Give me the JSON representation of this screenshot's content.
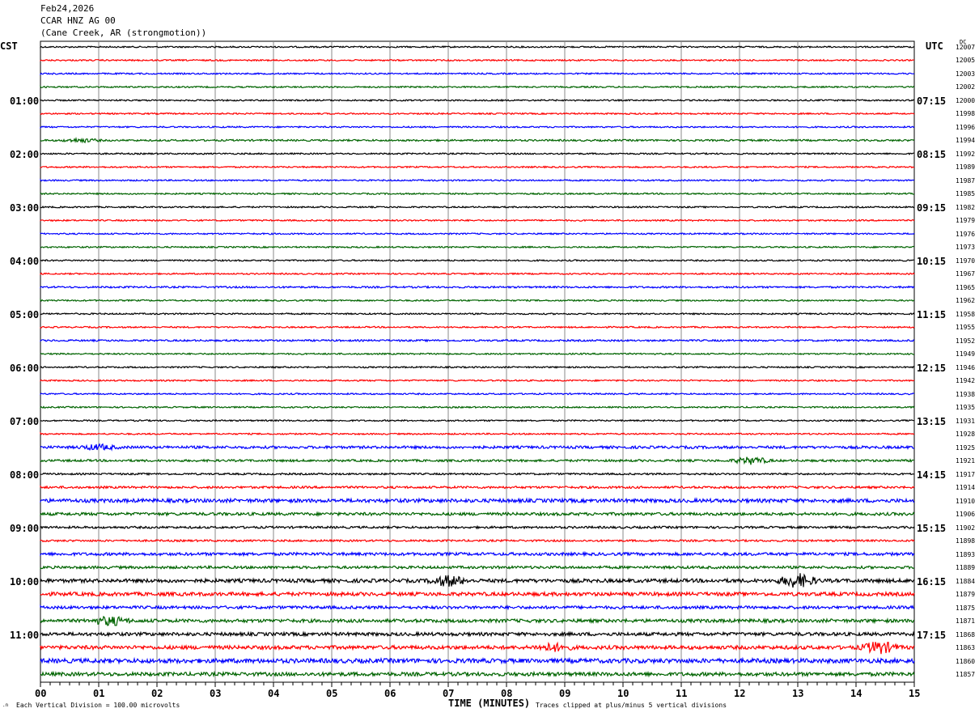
{
  "header": {
    "date": "Feb24,2026",
    "station": "CCAR HNZ AG 00",
    "location": "(Cane Creek, AR (strongmotion))"
  },
  "left_tz": "CST",
  "right_tz": "UTC",
  "dc_label": "DC",
  "footer": {
    "scale_note": "Each Vertical Division =  100.00 microvolts",
    "xlabel": "TIME (MINUTES)",
    "clip_note": "Traces clipped at plus/minus 5 vertical divisions"
  },
  "chart_data": {
    "type": "line",
    "title": "",
    "xlabel": "TIME (MINUTES)",
    "xlim": [
      0,
      15
    ],
    "x_ticks": [
      "00",
      "01",
      "02",
      "03",
      "04",
      "05",
      "06",
      "07",
      "08",
      "09",
      "10",
      "11",
      "12",
      "13",
      "14",
      "15"
    ],
    "grid": true,
    "trace_colors": [
      "#000000",
      "#ff0000",
      "#0000ff",
      "#006400"
    ],
    "left_hour_labels": [
      "",
      "01:00",
      "02:00",
      "03:00",
      "04:00",
      "05:00",
      "06:00",
      "07:00",
      "08:00",
      "09:00",
      "10:00",
      "11:00"
    ],
    "right_hour_labels": [
      "",
      "07:15",
      "08:15",
      "09:15",
      "10:15",
      "11:15",
      "12:15",
      "13:15",
      "14:15",
      "15:15",
      "16:15",
      "17:15"
    ],
    "dc_offsets": [
      12007,
      12005,
      12003,
      12002,
      12000,
      11998,
      11996,
      11994,
      11992,
      11989,
      11987,
      11985,
      11982,
      11979,
      11976,
      11973,
      11970,
      11967,
      11965,
      11962,
      11958,
      11955,
      11952,
      11949,
      11946,
      11942,
      11938,
      11935,
      11931,
      11928,
      11925,
      11921,
      11917,
      11914,
      11910,
      11906,
      11902,
      11898,
      11893,
      11889,
      11884,
      11879,
      11875,
      11871,
      11868,
      11863,
      11860,
      11857
    ],
    "noise_level": [
      1,
      1,
      1,
      1,
      1,
      1,
      1,
      1.2,
      1,
      1,
      1,
      1,
      1,
      1,
      1,
      1,
      1,
      1,
      1.2,
      1,
      1,
      1,
      1.2,
      1,
      1,
      1,
      1,
      1,
      1,
      1,
      1.8,
      1.5,
      1.2,
      1.5,
      2.5,
      2,
      1.5,
      1.3,
      2,
      1.8,
      2.5,
      2.5,
      2,
      2.3,
      2.3,
      2.5,
      3,
      2.5
    ],
    "events": [
      {
        "row": 7,
        "minute": 0.7,
        "amp": 2
      },
      {
        "row": 30,
        "minute": 1.0,
        "amp": 3
      },
      {
        "row": 31,
        "minute": 12.2,
        "amp": 4
      },
      {
        "row": 40,
        "minute": 7.0,
        "amp": 6
      },
      {
        "row": 40,
        "minute": 13.0,
        "amp": 8
      },
      {
        "row": 43,
        "minute": 1.2,
        "amp": 5
      },
      {
        "row": 45,
        "minute": 14.4,
        "amp": 7
      },
      {
        "row": 45,
        "minute": 8.8,
        "amp": 4
      }
    ]
  }
}
